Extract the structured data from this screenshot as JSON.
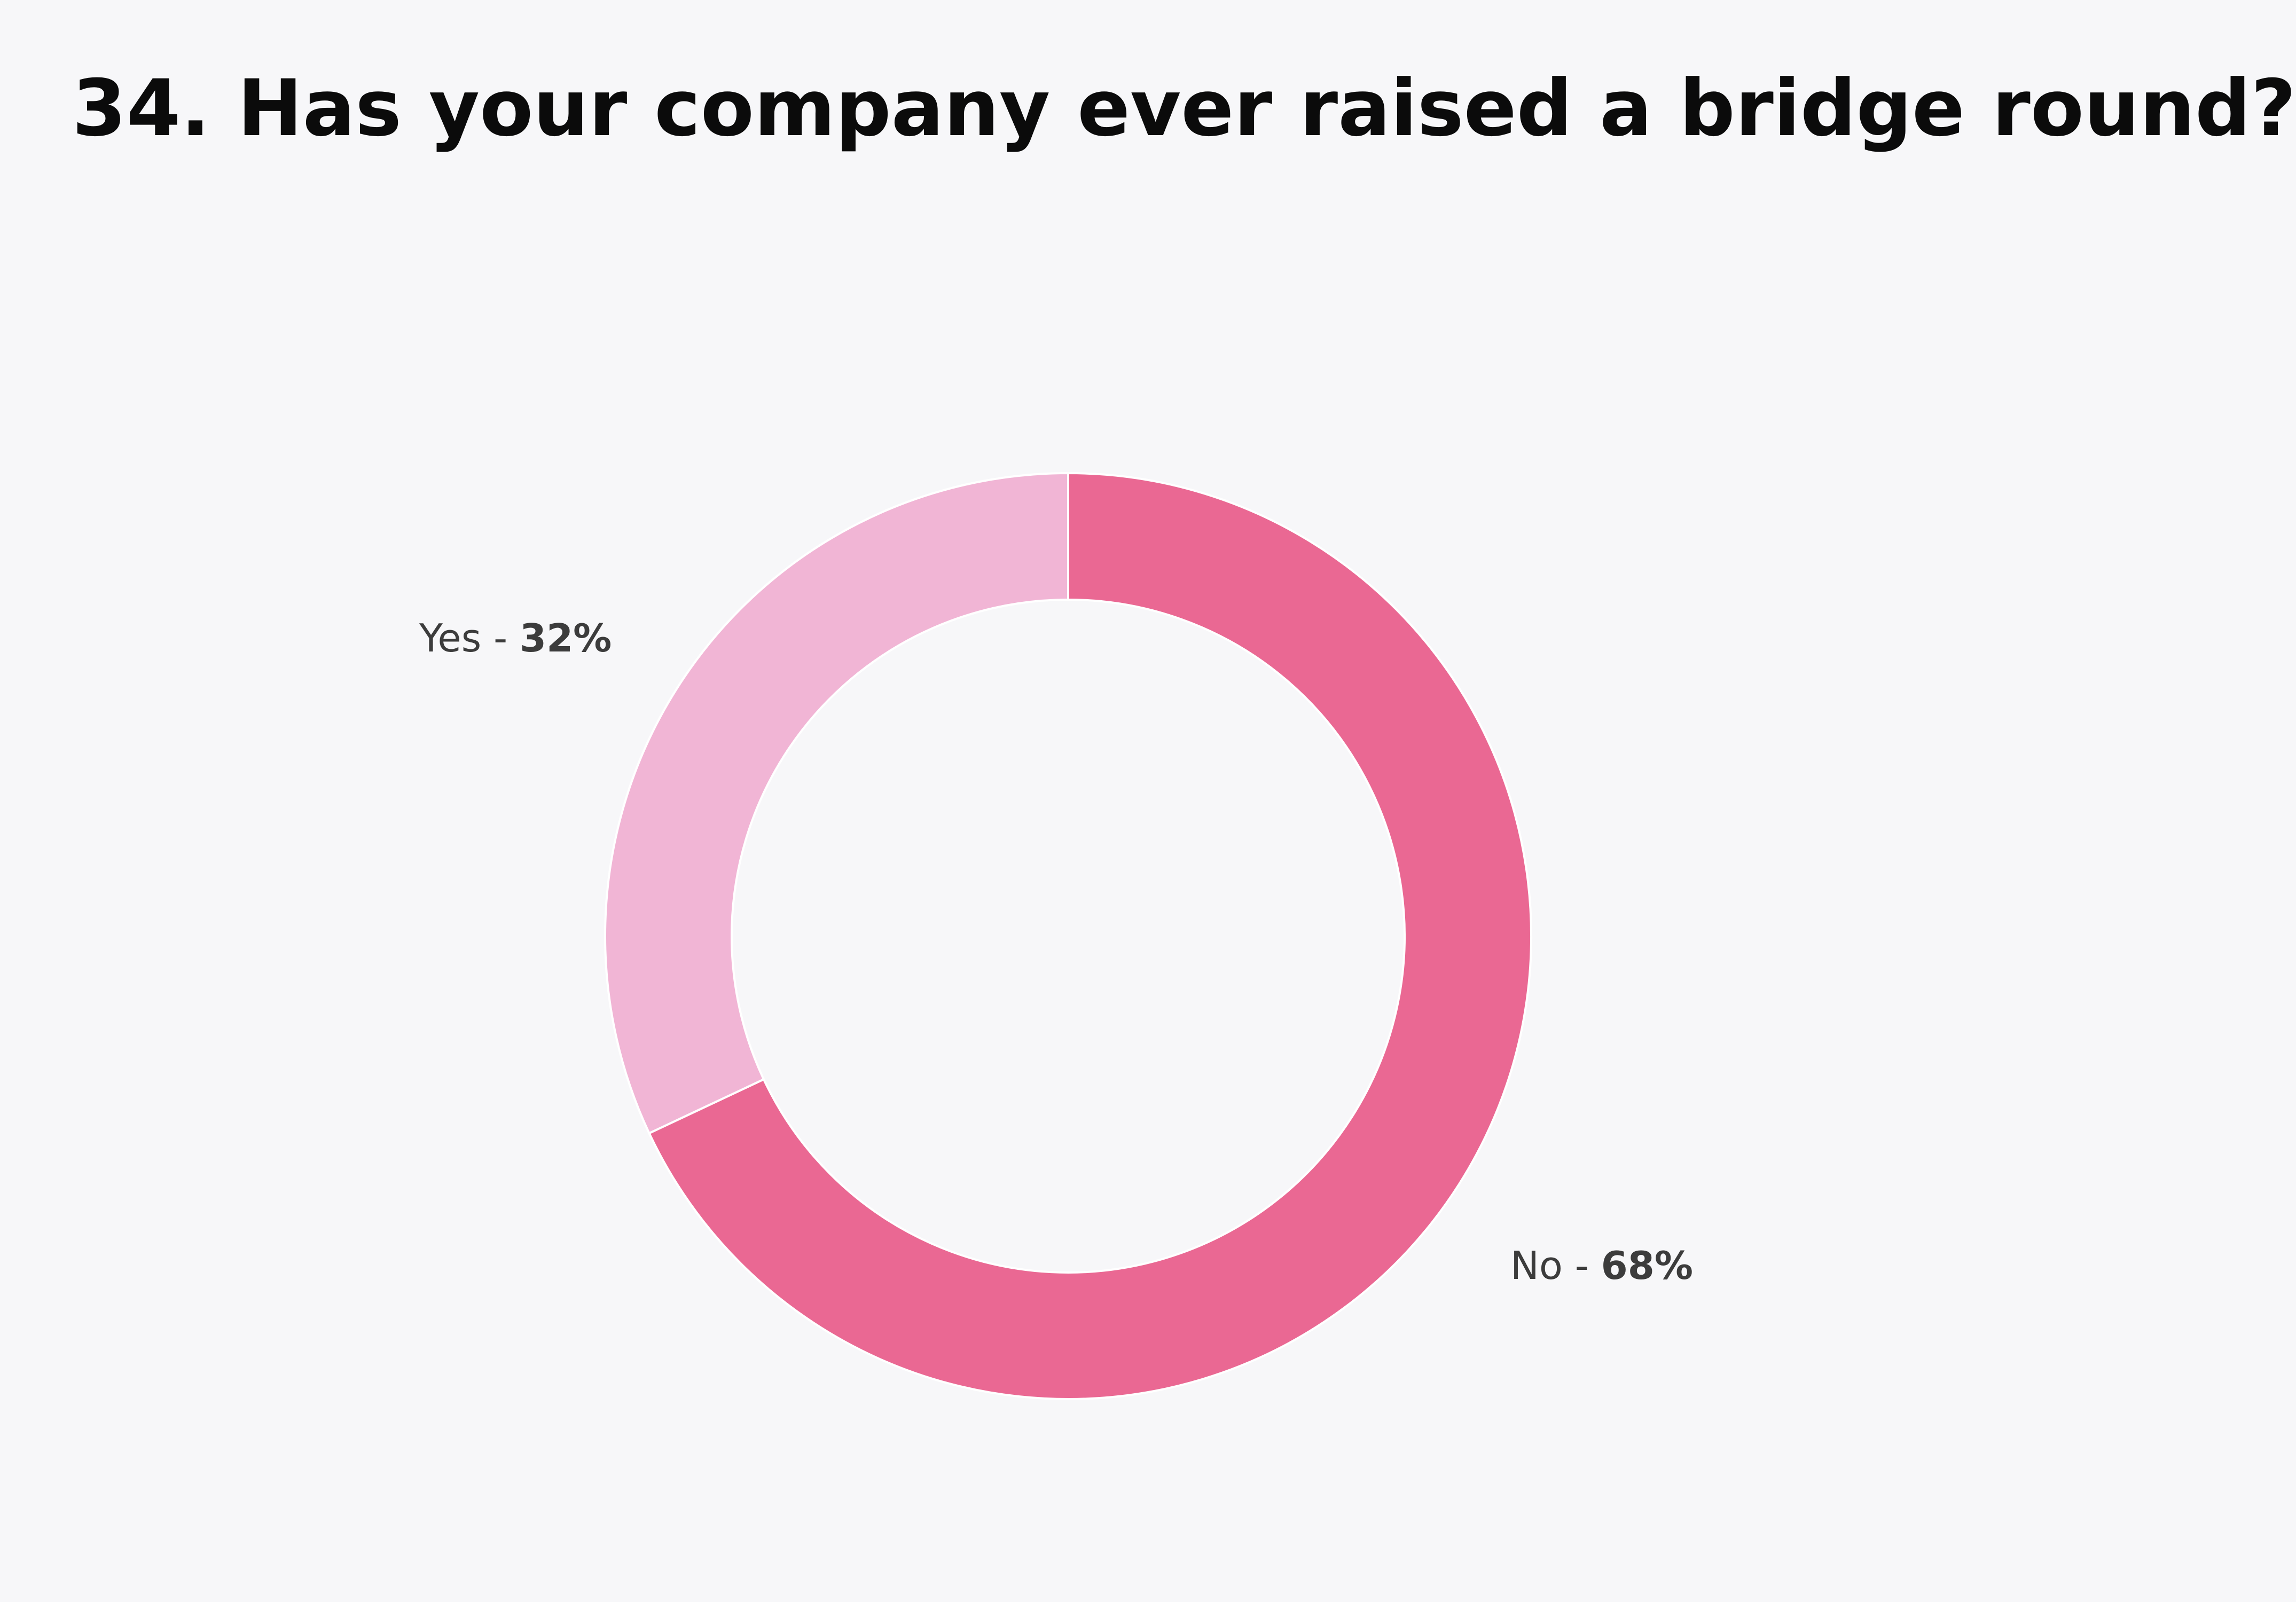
{
  "chart_data": {
    "type": "pie",
    "title": "34. Has your company ever raised a bridge round?",
    "slices": [
      {
        "label": "No",
        "value": 68,
        "display": "68%",
        "color": "#ea6893"
      },
      {
        "label": "Yes",
        "value": 32,
        "display": "32%",
        "color": "#f1b5d5"
      }
    ],
    "legend": "none"
  }
}
